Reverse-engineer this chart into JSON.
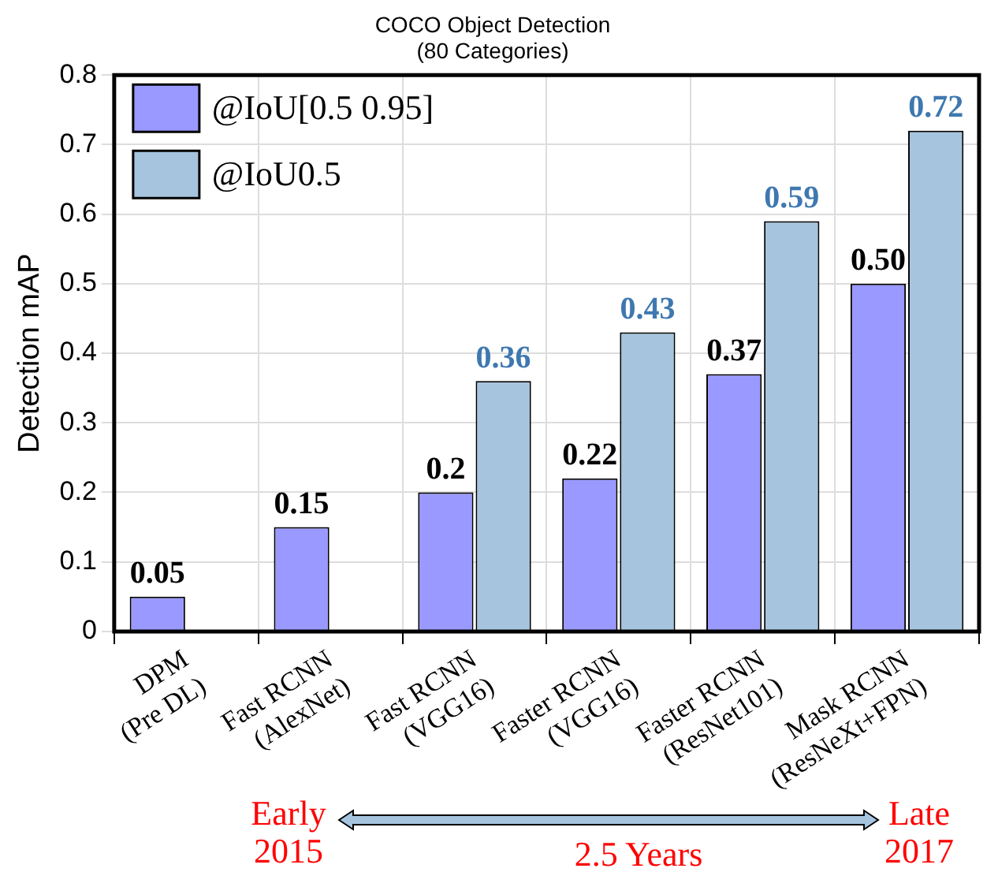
{
  "chart_data": {
    "type": "bar",
    "title": [
      "COCO Object Detection",
      "(80 Categories)"
    ],
    "ylabel": "Detection mAP",
    "categories": [
      "DPM\n(Pre DL)",
      "Fast RCNN\n(AlexNet)",
      "Fast RCNN\n(VGG16)",
      "Faster RCNN\n(VGG16)",
      "Faster RCNN\n(ResNet101)",
      "Mask RCNN\n(ResNeXt+FPN)"
    ],
    "series": [
      {
        "name": "@IoU[0.5 0.95]",
        "color": "#9999ff",
        "values": [
          0.05,
          0.15,
          0.2,
          0.22,
          0.37,
          0.5
        ],
        "value_labels": [
          "0.05",
          "0.15",
          "0.2",
          "0.22",
          "0.37",
          "0.50"
        ]
      },
      {
        "name": "@IoU0.5",
        "color": "#a6c4de",
        "values": [
          null,
          null,
          0.36,
          0.43,
          0.59,
          0.72
        ],
        "value_labels": [
          null,
          null,
          "0.36",
          "0.43",
          "0.59",
          "0.72"
        ]
      }
    ],
    "ylim": [
      0,
      0.8
    ],
    "yticks": [
      0,
      0.1,
      0.2,
      0.3,
      0.4,
      0.5,
      0.6,
      0.7,
      0.8
    ],
    "grid": true,
    "legend": "top left",
    "annotations": [
      "Early\n2015",
      "Late\n2017",
      "2.5 Years"
    ]
  }
}
